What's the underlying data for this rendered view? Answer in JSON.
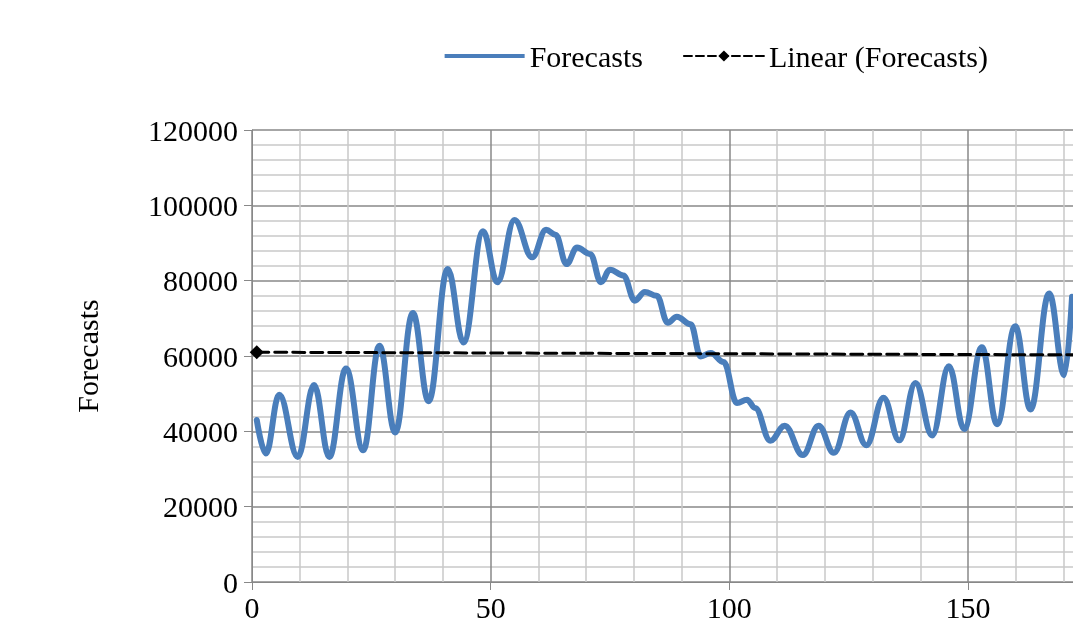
{
  "chart_data": {
    "type": "line",
    "ylabel": "Forecasts",
    "xlim": [
      0,
      172
    ],
    "xticks": [
      0,
      50,
      100,
      150
    ],
    "ylim": [
      0,
      120000
    ],
    "yticks": [
      0,
      20000,
      40000,
      60000,
      80000,
      100000,
      120000
    ],
    "grid": true,
    "legend": "top right",
    "series": [
      {
        "name": "Forecasts",
        "color": "#4a7ebb",
        "marker": "none",
        "line_style": "solid",
        "x": [
          1,
          2.9,
          5.7,
          9.6,
          13,
          16.2,
          19.7,
          23.3,
          26.7,
          30,
          33.7,
          37,
          41,
          44.3,
          48.4,
          51.4,
          55,
          58.7,
          61.6,
          63.6,
          65.9,
          68.1,
          70.9,
          73.1,
          75,
          77.8,
          80.2,
          82.3,
          84.8,
          87.1,
          89,
          91.9,
          94,
          96.1,
          98.8,
          101.6,
          103.7,
          105.4,
          108.6,
          111.6,
          115.4,
          118.7,
          121.9,
          125.4,
          128.7,
          132.3,
          135.6,
          139,
          142.5,
          146,
          149.2,
          152.9,
          156.1,
          159.9,
          163.1,
          167,
          170.2,
          171.8
        ],
        "values": [
          43000,
          34100,
          49700,
          33200,
          52300,
          33200,
          56700,
          35000,
          62700,
          39700,
          71400,
          48000,
          83100,
          63600,
          93100,
          79600,
          96100,
          86200,
          93500,
          92200,
          84400,
          88800,
          87000,
          79600,
          82900,
          81400,
          74700,
          77000,
          76000,
          68800,
          70400,
          68400,
          59900,
          60800,
          58400,
          47500,
          48400,
          46200,
          37500,
          41500,
          33700,
          41500,
          34300,
          45000,
          36300,
          48900,
          37600,
          52800,
          38900,
          57300,
          40600,
          62300,
          41900,
          67900,
          45800,
          76600,
          54900,
          75700
        ]
      },
      {
        "name": "Linear (Forecasts)",
        "color": "#000000",
        "marker": "diamond",
        "line_style": "dashed",
        "x": [
          1,
          172
        ],
        "values": [
          61000,
          60300
        ]
      }
    ]
  }
}
